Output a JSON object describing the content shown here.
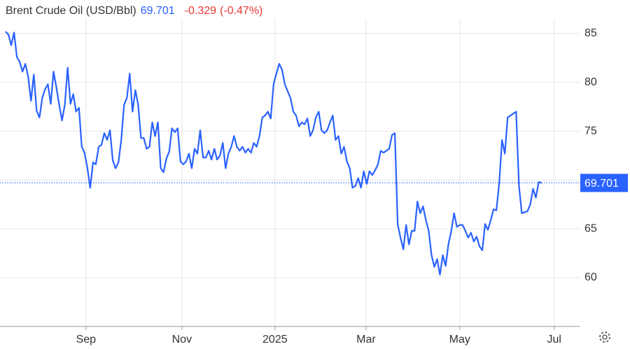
{
  "chart_data": {
    "type": "line",
    "title": "Brent Crude Oil (USD/Bbl)",
    "last_value": 69.701,
    "change": -0.329,
    "change_pct": {
      "value": -0.47,
      "label": "(-0.47%)"
    },
    "color": "#2962ff",
    "change_color": "#e53935",
    "grid": true,
    "ylim": [
      55,
      86.5
    ],
    "yticks": [
      60,
      65,
      70,
      75,
      80,
      85
    ],
    "xlim": [
      0,
      203.5
    ],
    "xticks": [
      {
        "value": 28.5,
        "label": "Sep"
      },
      {
        "value": 62.5,
        "label": "Nov"
      },
      {
        "value": 95.5,
        "label": "2025"
      },
      {
        "value": 127.8,
        "label": "Mar"
      },
      {
        "value": 161,
        "label": "May"
      },
      {
        "value": 194.5,
        "label": "Jul"
      }
    ],
    "values": [
      85.2,
      84.9,
      83.8,
      85.1,
      82.6,
      82.1,
      81.1,
      81.9,
      80.6,
      78.1,
      80.8,
      77.1,
      76.4,
      78.4,
      79.3,
      79.8,
      77.8,
      81.1,
      79.5,
      77.7,
      76.1,
      77.7,
      81.5,
      77.8,
      78.8,
      77.0,
      77.4,
      73.4,
      72.8,
      71.2,
      69.2,
      71.8,
      71.6,
      73.4,
      73.6,
      74.8,
      74.1,
      75.1,
      72.0,
      71.2,
      71.8,
      74.1,
      77.7,
      78.4,
      80.9,
      77.0,
      79.2,
      77.7,
      74.3,
      74.3,
      73.2,
      73.4,
      75.9,
      74.5,
      75.9,
      71.2,
      70.8,
      72.2,
      72.9,
      75.3,
      74.9,
      75.3,
      71.9,
      71.6,
      71.9,
      72.7,
      71.2,
      73.2,
      72.7,
      75.1,
      72.3,
      72.3,
      73.0,
      72.1,
      73.2,
      72.1,
      72.5,
      73.8,
      71.2,
      72.7,
      73.4,
      74.5,
      73.4,
      73.0,
      73.4,
      72.8,
      73.2,
      72.8,
      73.8,
      73.4,
      74.5,
      76.4,
      76.6,
      77.0,
      76.3,
      79.8,
      80.9,
      81.9,
      81.3,
      79.8,
      79.1,
      78.4,
      77.0,
      76.6,
      75.5,
      75.9,
      75.7,
      76.3,
      74.5,
      75.1,
      76.4,
      77.0,
      75.1,
      74.8,
      75.1,
      75.9,
      76.6,
      74.1,
      74.5,
      72.7,
      73.4,
      71.9,
      71.2,
      69.2,
      69.4,
      70.2,
      69.2,
      70.9,
      69.6,
      70.9,
      70.5,
      71.0,
      71.6,
      73.0,
      72.8,
      73.0,
      73.2,
      74.6,
      74.8,
      65.5,
      64.1,
      62.9,
      65.4,
      63.4,
      64.8,
      64.8,
      67.8,
      66.6,
      67.3,
      65.9,
      64.8,
      62.3,
      61.1,
      61.9,
      60.3,
      62.3,
      61.2,
      63.4,
      64.8,
      66.6,
      65.2,
      65.4,
      65.4,
      64.8,
      64.1,
      64.6,
      63.7,
      64.2,
      63.2,
      62.8,
      65.5,
      64.9,
      65.9,
      67.0,
      66.9,
      69.7,
      74.1,
      72.7,
      76.4,
      76.6,
      76.8,
      77.0,
      69.4,
      66.6,
      66.7,
      66.8,
      67.5,
      69.1,
      68.2,
      69.8,
      69.7
    ]
  }
}
